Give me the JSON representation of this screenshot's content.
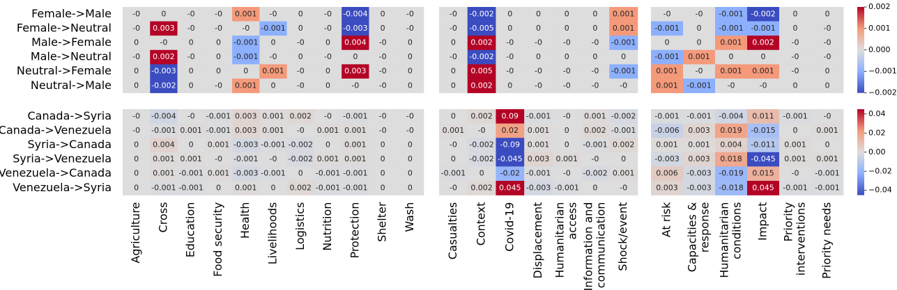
{
  "chart_data": {
    "type": "heatmap",
    "colormap": "coolwarm",
    "row_groups": [
      {
        "rows": [
          "Female->Male",
          "Female->Neutral",
          "Male->Female",
          "Male->Neutral",
          "Neutral->Female",
          "Neutral->Male"
        ],
        "colorbar": {
          "ylim": [
            -0.002,
            0.002
          ],
          "yticks": [
            0.002,
            0.001,
            {
              "value": 0,
              "label": "0.000"
            },
            {
              "value": -0.001,
              "label": "−0.001"
            },
            {
              "value": -0.002,
              "label": "−0.002"
            }
          ]
        }
      },
      {
        "rows": [
          "Canada->Syria",
          "Canada->Venezuela",
          "Syria->Canada",
          "Syria->Venezuela",
          "Venezuela->Canada",
          "Venezuela->Syria"
        ],
        "colorbar": {
          "ylim": [
            -0.045,
            0.045
          ],
          "yticks": [
            0.04,
            0.02,
            {
              "value": 0,
              "label": "0.00"
            },
            {
              "value": -0.02,
              "label": "−0.02"
            },
            {
              "value": -0.04,
              "label": "−0.04"
            }
          ]
        }
      }
    ],
    "column_groups": [
      {
        "columns": [
          [
            "Agriculture"
          ],
          [
            "Cross"
          ],
          [
            "Education"
          ],
          [
            "Food security"
          ],
          [
            "Health"
          ],
          [
            "Livelihoods"
          ],
          [
            "Logistics"
          ],
          [
            "Nutrition"
          ],
          [
            "Protection"
          ],
          [
            "Shelter"
          ],
          [
            "Wash"
          ]
        ]
      },
      {
        "columns": [
          [
            "Casualties"
          ],
          [
            "Context"
          ],
          [
            "Covid-19"
          ],
          [
            "Displacement"
          ],
          [
            "Humanitarian",
            "access"
          ],
          [
            "Information and",
            "communication"
          ],
          [
            "Shock/event"
          ]
        ]
      },
      {
        "columns": [
          [
            "At risk"
          ],
          [
            "Capacities &",
            "response"
          ],
          [
            "Humanitarian",
            "conditions"
          ],
          [
            "Impact"
          ],
          [
            "Priority",
            "interventions"
          ],
          [
            "Priority needs"
          ]
        ]
      }
    ],
    "panels": [
      [
        {
          "values": [
            [
              0,
              0,
              0,
              0,
              0.001,
              0,
              0,
              0,
              -0.004,
              0,
              0
            ],
            [
              0,
              0.003,
              0,
              0,
              0,
              -0.001,
              0,
              0,
              -0.003,
              0,
              0
            ],
            [
              0,
              0,
              0,
              0,
              -0.001,
              0,
              0,
              0,
              0.004,
              0,
              0
            ],
            [
              0,
              0.002,
              0,
              0,
              -0.001,
              0,
              0,
              0,
              0,
              0,
              0
            ],
            [
              0,
              -0.003,
              0,
              0,
              0,
              0.001,
              0,
              0,
              0.003,
              0,
              0
            ],
            [
              0,
              -0.002,
              0,
              0,
              0.001,
              0,
              0,
              0,
              0,
              0,
              0
            ]
          ],
          "value_labels": [
            [
              "-0",
              "0",
              "-0",
              "-0",
              "0.001",
              "-0",
              "0",
              "-0",
              "-0.004",
              "0",
              "-0"
            ],
            [
              "-0",
              "0.003",
              "-0",
              "-0",
              "-0",
              "-0.001",
              "0",
              "-0",
              "-0.003",
              "0",
              "-0"
            ],
            [
              "0",
              "-0",
              "0",
              "0",
              "-0.001",
              "0",
              "-0",
              "0",
              "0.004",
              "-0",
              "0"
            ],
            [
              "-0",
              "0.002",
              "-0",
              "0",
              "-0.001",
              "-0",
              "0",
              "-0",
              "0",
              "-0",
              "0"
            ],
            [
              "0",
              "-0.003",
              "0",
              "0",
              "0",
              "0.001",
              "-0",
              "0",
              "0.003",
              "-0",
              "0"
            ],
            [
              "0",
              "-0.002",
              "0",
              "-0",
              "0.001",
              "0",
              "-0",
              "0",
              "-0",
              "-0",
              "0"
            ]
          ]
        },
        {
          "values": [
            [
              0,
              -0.002,
              0,
              0,
              0,
              0,
              0.001
            ],
            [
              0,
              -0.005,
              0,
              0,
              0,
              0,
              0.001
            ],
            [
              0,
              0.002,
              0,
              0,
              0,
              0,
              -0.001
            ],
            [
              0,
              -0.002,
              0,
              0,
              0,
              0,
              0
            ],
            [
              0,
              0.005,
              0,
              0,
              0,
              0,
              -0.001
            ],
            [
              0,
              0.002,
              0,
              0,
              0,
              0,
              0
            ]
          ],
          "value_labels": [
            [
              "-0",
              "-0.002",
              "0",
              "0",
              "0",
              "0",
              "0.001"
            ],
            [
              "-0",
              "-0.005",
              "0",
              "0",
              "0",
              "0",
              "0.001"
            ],
            [
              "0",
              "0.002",
              "-0",
              "-0",
              "-0",
              "-0",
              "-0.001"
            ],
            [
              "-0",
              "-0.002",
              "-0",
              "0",
              "0",
              "0",
              "0"
            ],
            [
              "0",
              "0.005",
              "-0",
              "-0",
              "-0",
              "-0",
              "-0.001"
            ],
            [
              "0",
              "0.002",
              "0",
              "-0",
              "-0",
              "-0",
              "-0"
            ]
          ]
        },
        {
          "values": [
            [
              0,
              0,
              -0.001,
              -0.002,
              0,
              0
            ],
            [
              -0.001,
              0,
              -0.001,
              -0.001,
              0,
              0
            ],
            [
              0,
              0,
              0.001,
              0.002,
              0,
              0
            ],
            [
              -0.001,
              0.001,
              0,
              0,
              0,
              0
            ],
            [
              0.001,
              0,
              0.001,
              0.001,
              0,
              0
            ],
            [
              0.001,
              -0.001,
              0,
              0,
              0,
              0
            ]
          ],
          "value_labels": [
            [
              "-0",
              "-0",
              "-0.001",
              "-0.002",
              "0",
              "0"
            ],
            [
              "-0.001",
              "0",
              "-0.001",
              "-0.001",
              "0",
              "-0"
            ],
            [
              "0",
              "0",
              "0.001",
              "0.002",
              "-0",
              "-0"
            ],
            [
              "-0.001",
              "0.001",
              "0",
              "0",
              "-0",
              "-0"
            ],
            [
              "0.001",
              "-0",
              "0.001",
              "0.001",
              "-0",
              "0"
            ],
            [
              "0.001",
              "-0.001",
              "-0",
              "-0",
              "0",
              "0"
            ]
          ]
        }
      ],
      [
        {
          "values": [
            [
              0,
              -0.004,
              0,
              -0.001,
              0.003,
              0.001,
              0.002,
              0,
              -0.001,
              0,
              0
            ],
            [
              0,
              -0.001,
              0.001,
              -0.001,
              0.003,
              0.001,
              0,
              0.001,
              0.001,
              0,
              0
            ],
            [
              0,
              0.004,
              0,
              0.001,
              -0.003,
              -0.001,
              -0.002,
              0,
              0.001,
              0,
              0
            ],
            [
              0,
              0.001,
              0.001,
              0,
              -0.001,
              0,
              -0.002,
              0.001,
              0.001,
              0,
              0
            ],
            [
              0,
              0.001,
              -0.001,
              0.001,
              -0.003,
              -0.001,
              0,
              -0.001,
              -0.001,
              0,
              0
            ],
            [
              0,
              -0.001,
              -0.001,
              0,
              0.001,
              0,
              0.002,
              -0.001,
              -0.001,
              0,
              0
            ]
          ],
          "value_labels": [
            [
              "-0",
              "-0.004",
              "-0",
              "-0.001",
              "0.003",
              "0.001",
              "0.002",
              "-0",
              "-0.001",
              "-0",
              "-0"
            ],
            [
              "-0",
              "-0.001",
              "0.001",
              "-0.001",
              "0.003",
              "0.001",
              "-0",
              "0.001",
              "0.001",
              "-0",
              "-0"
            ],
            [
              "0",
              "0.004",
              "0",
              "0.001",
              "-0.003",
              "-0.001",
              "-0.002",
              "0",
              "0.001",
              "0",
              "0"
            ],
            [
              "0",
              "0.001",
              "0.001",
              "-0",
              "-0.001",
              "-0",
              "-0.002",
              "0.001",
              "0.001",
              "0",
              "0"
            ],
            [
              "0",
              "0.001",
              "-0.001",
              "0.001",
              "-0.003",
              "-0.001",
              "0",
              "-0.001",
              "-0.001",
              "0",
              "0"
            ],
            [
              "0",
              "-0.001",
              "-0.001",
              "0",
              "0.001",
              "0",
              "0.002",
              "-0.001",
              "-0.001",
              "0",
              "0"
            ]
          ]
        },
        {
          "values": [
            [
              0,
              0.002,
              0.09,
              -0.001,
              0,
              0.001,
              -0.002
            ],
            [
              0.001,
              0,
              0.02,
              0.001,
              0,
              0.002,
              -0.001
            ],
            [
              0,
              -0.002,
              -0.09,
              0.001,
              0,
              -0.001,
              0.002
            ],
            [
              0,
              -0.002,
              -0.045,
              0.003,
              0.001,
              0,
              0
            ],
            [
              -0.001,
              0,
              -0.02,
              -0.001,
              0,
              -0.002,
              0.001
            ],
            [
              0,
              0.002,
              0.045,
              -0.003,
              -0.001,
              0,
              0
            ]
          ],
          "value_labels": [
            [
              "0",
              "0.002",
              "0.09",
              "-0.001",
              "-0",
              "0.001",
              "-0.002"
            ],
            [
              "0.001",
              "-0",
              "0.02",
              "0.001",
              "0",
              "0.002",
              "-0.001"
            ],
            [
              "-0",
              "-0.002",
              "-0.09",
              "0.001",
              "0",
              "-0.001",
              "0.002"
            ],
            [
              "0",
              "-0.002",
              "-0.045",
              "0.003",
              "0.001",
              "-0",
              "0"
            ],
            [
              "-0.001",
              "0",
              "-0.02",
              "-0.001",
              "-0",
              "-0.002",
              "0.001"
            ],
            [
              "-0",
              "0.002",
              "0.045",
              "-0.003",
              "-0.001",
              "0",
              "-0"
            ]
          ]
        },
        {
          "values": [
            [
              -0.001,
              -0.001,
              -0.004,
              0.011,
              -0.001,
              0
            ],
            [
              -0.006,
              0.003,
              0.019,
              -0.015,
              0,
              0.001
            ],
            [
              0.001,
              0.001,
              0.004,
              -0.011,
              0.001,
              0
            ],
            [
              -0.003,
              0.003,
              0.018,
              -0.045,
              0.001,
              0.001
            ],
            [
              0.006,
              -0.003,
              -0.019,
              0.015,
              0,
              -0.001
            ],
            [
              0.003,
              -0.003,
              -0.018,
              0.045,
              -0.001,
              -0.001
            ]
          ],
          "value_labels": [
            [
              "-0.001",
              "-0.001",
              "-0.004",
              "0.011",
              "-0.001",
              "-0"
            ],
            [
              "-0.006",
              "0.003",
              "0.019",
              "-0.015",
              "0",
              "0.001"
            ],
            [
              "0.001",
              "0.001",
              "0.004",
              "-0.011",
              "0.001",
              "0"
            ],
            [
              "-0.003",
              "0.003",
              "0.018",
              "-0.045",
              "0.001",
              "0.001"
            ],
            [
              "0.006",
              "-0.003",
              "-0.019",
              "0.015",
              "-0",
              "-0.001"
            ],
            [
              "0.003",
              "-0.003",
              "-0.018",
              "0.045",
              "-0.001",
              "-0.001"
            ]
          ]
        }
      ]
    ]
  }
}
